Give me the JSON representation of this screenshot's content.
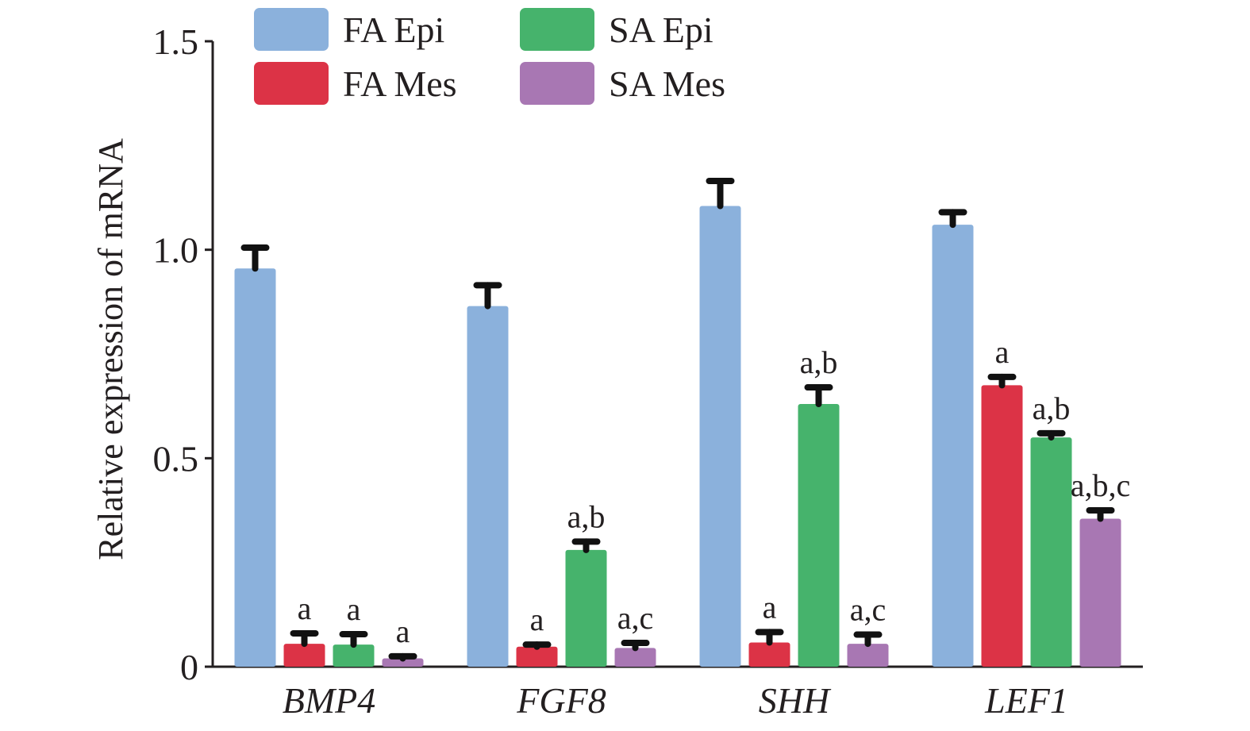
{
  "chart_data": {
    "type": "bar",
    "title": "",
    "xlabel": "",
    "ylabel": "Relative expression of mRNA",
    "ylim": [
      0,
      1.5
    ],
    "yticks": [
      0,
      0.5,
      1.0,
      1.5
    ],
    "ytick_labels": [
      "0",
      "0.5",
      "1.0",
      "1.5"
    ],
    "grid": false,
    "legend_position": "top-left",
    "categories": [
      "BMP4",
      "FGF8",
      "SHH",
      "LEF1"
    ],
    "series": [
      {
        "name": "FA Epi",
        "color": "#8bb1dc",
        "values": [
          0.955,
          0.865,
          1.105,
          1.06
        ],
        "errors": [
          0.05,
          0.05,
          0.06,
          0.03
        ],
        "labels": [
          "",
          "",
          "",
          ""
        ]
      },
      {
        "name": "FA Mes",
        "color": "#dc3346",
        "values": [
          0.055,
          0.048,
          0.058,
          0.675
        ],
        "errors": [
          0.025,
          0.005,
          0.025,
          0.02
        ],
        "labels": [
          "a",
          "a",
          "a",
          "a"
        ]
      },
      {
        "name": "SA Epi",
        "color": "#46b36c",
        "values": [
          0.053,
          0.28,
          0.63,
          0.55
        ],
        "errors": [
          0.025,
          0.02,
          0.04,
          0.01
        ],
        "labels": [
          "a",
          "a,b",
          "a,b",
          "a,b"
        ]
      },
      {
        "name": "SA Mes",
        "color": "#a877b3",
        "values": [
          0.02,
          0.045,
          0.055,
          0.355
        ],
        "errors": [
          0.005,
          0.012,
          0.022,
          0.02
        ],
        "labels": [
          "a",
          "a,c",
          "a,c",
          "a,b,c"
        ]
      }
    ]
  }
}
